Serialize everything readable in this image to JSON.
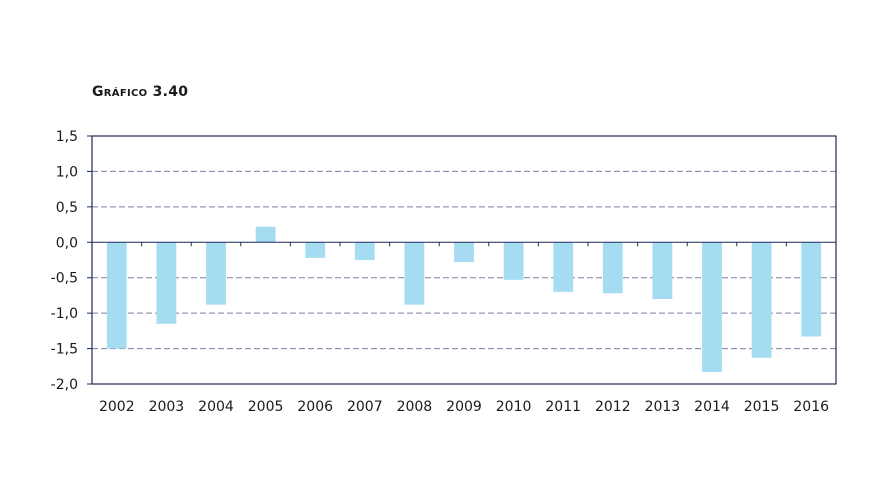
{
  "title": "Gráfico 3.40",
  "chart_data": {
    "type": "bar",
    "title": "Gráfico 3.40",
    "xlabel": "",
    "ylabel": "",
    "categories": [
      "2002",
      "2003",
      "2004",
      "2005",
      "2006",
      "2007",
      "2008",
      "2009",
      "2010",
      "2011",
      "2012",
      "2013",
      "2014",
      "2015",
      "2016"
    ],
    "values": [
      -1.5,
      -1.15,
      -0.88,
      0.22,
      -0.22,
      -0.25,
      -0.88,
      -0.28,
      -0.53,
      -0.7,
      -0.72,
      -0.8,
      -1.83,
      -1.63,
      -1.33
    ],
    "ylim": [
      -2.0,
      1.5
    ],
    "yticks": [
      "-2,0",
      "-1,5",
      "-1,0",
      "-0,5",
      "0,0",
      "0,5",
      "1,0",
      "1,5"
    ],
    "ytick_values": [
      -2.0,
      -1.5,
      -1.0,
      -0.5,
      0.0,
      0.5,
      1.0,
      1.5
    ],
    "grid": true,
    "legend": "none",
    "colors": {
      "bar": "#a6dcf2",
      "axis": "#1f2a5a",
      "grid": "#7a7f9a"
    }
  }
}
